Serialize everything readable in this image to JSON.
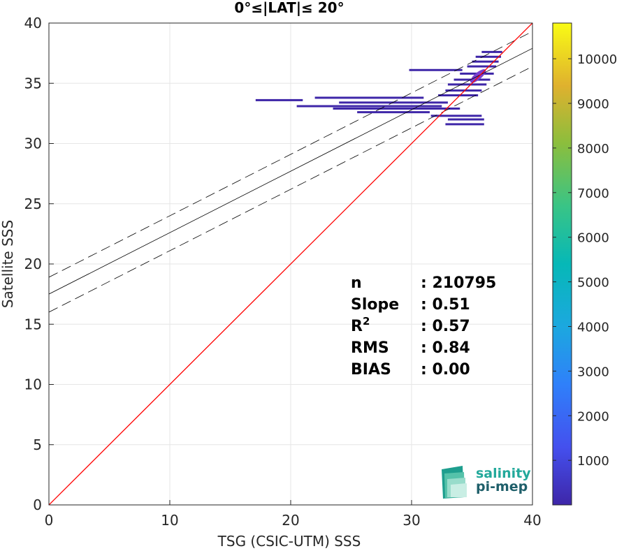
{
  "chart_data": {
    "type": "scatter",
    "title": "0°≤|LAT|≤ 20°",
    "xlabel": "TSG (CSIC-UTM) SSS",
    "ylabel": "Satellite SSS",
    "xlim": [
      0,
      40
    ],
    "ylim": [
      0,
      40
    ],
    "xticks": [
      "0",
      "10",
      "20",
      "30",
      "40"
    ],
    "yticks": [
      "0",
      "5",
      "10",
      "15",
      "20",
      "25",
      "30",
      "35",
      "40"
    ],
    "grid": true,
    "lines": {
      "identity": {
        "slope": 1,
        "intercept": 0,
        "color": "#ff0000"
      },
      "fit": {
        "slope": 0.51,
        "intercept": 17.5,
        "color": "#000000"
      },
      "fit_upper": {
        "slope": 0.51,
        "intercept": 18.9
      },
      "fit_lower": {
        "slope": 0.51,
        "intercept": 16.0
      }
    },
    "density_segments": [
      {
        "y": 37.6,
        "x0": 35.8,
        "x1": 37.5
      },
      {
        "y": 37.2,
        "x0": 35.3,
        "x1": 37.4
      },
      {
        "y": 36.8,
        "x0": 35.0,
        "x1": 37.2
      },
      {
        "y": 36.4,
        "x0": 34.6,
        "x1": 37.0
      },
      {
        "y": 36.1,
        "x0": 29.8,
        "x1": 34.2
      },
      {
        "y": 35.8,
        "x0": 34.0,
        "x1": 36.8
      },
      {
        "y": 35.3,
        "x0": 33.5,
        "x1": 36.5
      },
      {
        "y": 34.9,
        "x0": 33.0,
        "x1": 36.2
      },
      {
        "y": 34.4,
        "x0": 32.8,
        "x1": 35.8
      },
      {
        "y": 34.0,
        "x0": 32.2,
        "x1": 35.5
      },
      {
        "y": 33.8,
        "x0": 22.0,
        "x1": 31.0
      },
      {
        "y": 33.6,
        "x0": 17.1,
        "x1": 21.0
      },
      {
        "y": 33.4,
        "x0": 24.0,
        "x1": 33.0
      },
      {
        "y": 33.1,
        "x0": 20.5,
        "x1": 32.5
      },
      {
        "y": 32.9,
        "x0": 23.5,
        "x1": 34.0
      },
      {
        "y": 32.6,
        "x0": 25.5,
        "x1": 31.5
      },
      {
        "y": 32.3,
        "x0": 31.6,
        "x1": 35.8
      },
      {
        "y": 32.0,
        "x0": 33.0,
        "x1": 36.0
      },
      {
        "y": 31.6,
        "x0": 32.8,
        "x1": 36.0
      }
    ],
    "hot_core": {
      "x": 35.5,
      "y": 35.6
    },
    "stats": [
      {
        "label": "n",
        "value": ": 210795"
      },
      {
        "label": "Slope",
        "value": ": 0.51"
      },
      {
        "label": "R",
        "sup": "2",
        "value": ": 0.57"
      },
      {
        "label": "RMS",
        "value": ": 0.84"
      },
      {
        "label": "BIAS",
        "value": ": 0.00"
      }
    ],
    "colorbar": {
      "min": 1,
      "max": 10800,
      "ticks": [
        "1000",
        "2000",
        "3000",
        "4000",
        "5000",
        "6000",
        "7000",
        "8000",
        "9000",
        "10000"
      ],
      "colormap": "parula"
    }
  },
  "logo": {
    "line1": "salinity",
    "line2": "pi-mep"
  },
  "colors": {
    "identity": "#ff0000",
    "fit": "#000000",
    "points_low": "#3e26a8",
    "logo_text": "#23a99b"
  }
}
